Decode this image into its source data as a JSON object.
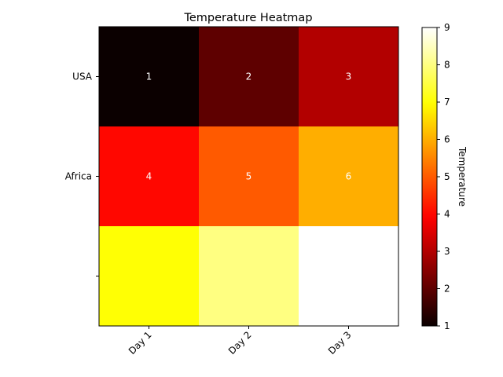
{
  "chart_data": {
    "type": "heatmap",
    "title": "Temperature Heatmap",
    "x_categories": [
      "Day 1",
      "Day 2",
      "Day 3"
    ],
    "y_categories": [
      "USA",
      "Africa",
      ""
    ],
    "values": [
      [
        1,
        2,
        3
      ],
      [
        4,
        5,
        6
      ],
      [
        7,
        8,
        9
      ]
    ],
    "cell_labels": [
      [
        "1",
        "2",
        "3"
      ],
      [
        "4",
        "5",
        "6"
      ],
      [
        "",
        "",
        ""
      ]
    ],
    "colorbar": {
      "label": "Temperature",
      "range": [
        1,
        9
      ],
      "ticks": [
        1,
        2,
        3,
        4,
        5,
        6,
        7,
        8,
        9
      ],
      "colormap": "hot"
    },
    "xtick_rotation_deg": 45,
    "cell_label_color": "#ffffff"
  }
}
